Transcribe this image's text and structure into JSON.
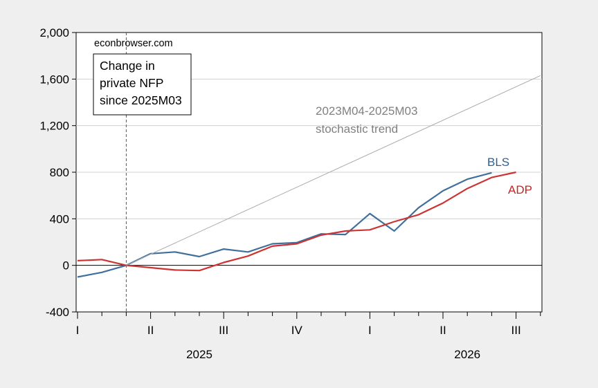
{
  "chart_data": {
    "type": "line",
    "title": "",
    "xlabel": "",
    "ylabel": "",
    "ylim": [
      -400,
      2000
    ],
    "y_ticks": [
      "2,000",
      "1,600",
      "1,200",
      "800",
      "400",
      "0",
      "-400"
    ],
    "y_tick_values": [
      2000,
      1600,
      1200,
      800,
      400,
      0,
      -400
    ],
    "x_unit": "month",
    "x_range": [
      "2025M01",
      "2026M07"
    ],
    "x_quarter_labels": [
      {
        "label": "I",
        "month": "2025M01"
      },
      {
        "label": "II",
        "month": "2025M04"
      },
      {
        "label": "III",
        "month": "2025M07"
      },
      {
        "label": "IV",
        "month": "2025M10"
      },
      {
        "label": "I",
        "month": "2026M01"
      },
      {
        "label": "II",
        "month": "2026M04"
      },
      {
        "label": "III",
        "month": "2026M07"
      }
    ],
    "year_labels": [
      {
        "label": "2025",
        "month": "2025M06"
      },
      {
        "label": "2026",
        "month": "2026M05"
      }
    ],
    "grid": true,
    "vertical_marker": "2025M03",
    "series": [
      {
        "name": "BLS",
        "color": "#3f6f9c",
        "points": [
          [
            "2025M01",
            -100
          ],
          [
            "2025M02",
            -60
          ],
          [
            "2025M03",
            0
          ],
          [
            "2025M04",
            100
          ],
          [
            "2025M05",
            115
          ],
          [
            "2025M06",
            75
          ],
          [
            "2025M07",
            140
          ],
          [
            "2025M08",
            115
          ],
          [
            "2025M09",
            185
          ],
          [
            "2025M10",
            195
          ],
          [
            "2025M11",
            270
          ],
          [
            "2025M12",
            265
          ],
          [
            "2026M01",
            445
          ],
          [
            "2026M02",
            295
          ],
          [
            "2026M03",
            495
          ],
          [
            "2026M04",
            640
          ],
          [
            "2026M05",
            740
          ],
          [
            "2026M06",
            795
          ]
        ]
      },
      {
        "name": "ADP",
        "color": "#cc3333",
        "points": [
          [
            "2025M01",
            40
          ],
          [
            "2025M02",
            50
          ],
          [
            "2025M03",
            0
          ],
          [
            "2025M04",
            -20
          ],
          [
            "2025M05",
            -40
          ],
          [
            "2025M06",
            -45
          ],
          [
            "2025M07",
            25
          ],
          [
            "2025M08",
            80
          ],
          [
            "2025M09",
            165
          ],
          [
            "2025M10",
            185
          ],
          [
            "2025M11",
            260
          ],
          [
            "2025M12",
            295
          ],
          [
            "2026M01",
            305
          ],
          [
            "2026M02",
            375
          ],
          [
            "2026M03",
            435
          ],
          [
            "2026M04",
            535
          ],
          [
            "2026M05",
            660
          ],
          [
            "2026M06",
            755
          ],
          [
            "2026M07",
            800
          ]
        ]
      },
      {
        "name": "2023M04-2025M03 stochastic trend",
        "color": "#aaaaaa",
        "points": [
          [
            "2025M03",
            0
          ],
          [
            "2026M08",
            1630
          ]
        ]
      }
    ],
    "annotations": {
      "source": "econbrowser.com",
      "box_lines": [
        "Change in",
        "private NFP",
        "since 2025M03"
      ],
      "trend_lines": [
        "2023M04-2025M03",
        "stochastic trend"
      ],
      "bls_label": "BLS",
      "adp_label": "ADP"
    }
  }
}
